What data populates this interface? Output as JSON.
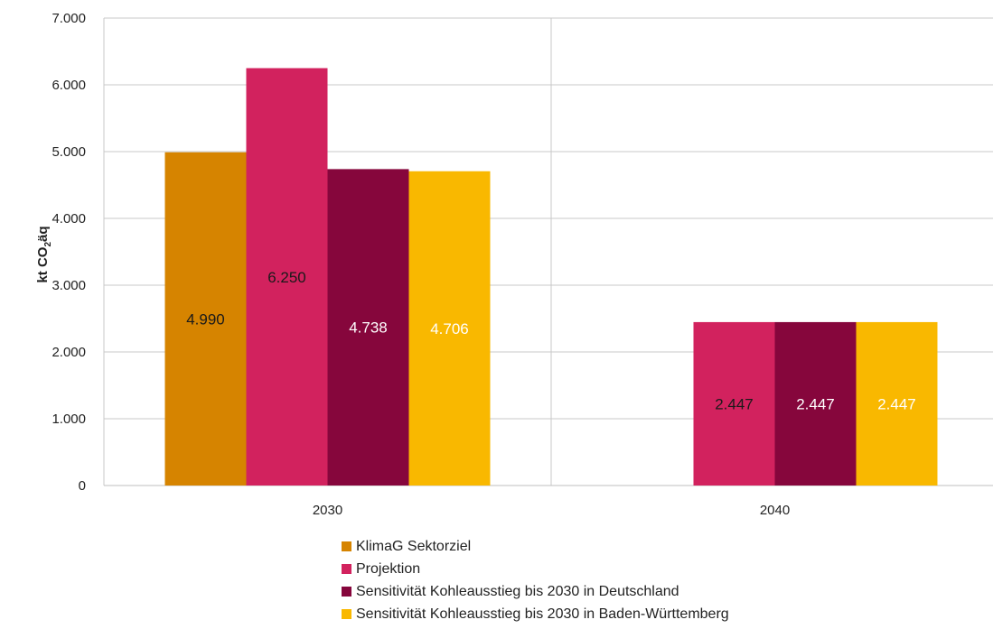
{
  "chart_data": {
    "type": "bar",
    "ylabel_main": "kt CO",
    "ylabel_sub": "2",
    "ylabel_tail": "äq",
    "ylim": [
      0,
      7000
    ],
    "yticks": [
      "0",
      "1.000",
      "2.000",
      "3.000",
      "4.000",
      "5.000",
      "6.000",
      "7.000"
    ],
    "categories": [
      "2030",
      "2040"
    ],
    "legend_position": "bottom",
    "series": [
      {
        "name": "KlimaG Sektorziel",
        "color": "#D68400",
        "label_color": "#1a1a1a",
        "values": [
          4990,
          null
        ],
        "labels": [
          "4.990",
          ""
        ]
      },
      {
        "name": "Projektion",
        "color": "#D2225E",
        "label_color": "#1a1a1a",
        "values": [
          6250,
          2447
        ],
        "labels": [
          "6.250",
          "2.447"
        ]
      },
      {
        "name": "Sensitivität Kohleausstieg bis 2030 in Deutschland",
        "color": "#86063C",
        "label_color": "#ffffff",
        "values": [
          4738,
          2447
        ],
        "labels": [
          "4.738",
          "2.447"
        ]
      },
      {
        "name": "Sensitivität Kohleausstieg bis 2030 in Baden-Württemberg",
        "color": "#F9B800",
        "label_color": "#ffffff",
        "values": [
          4706,
          2447
        ],
        "labels": [
          "4.706",
          "2.447"
        ]
      }
    ]
  }
}
